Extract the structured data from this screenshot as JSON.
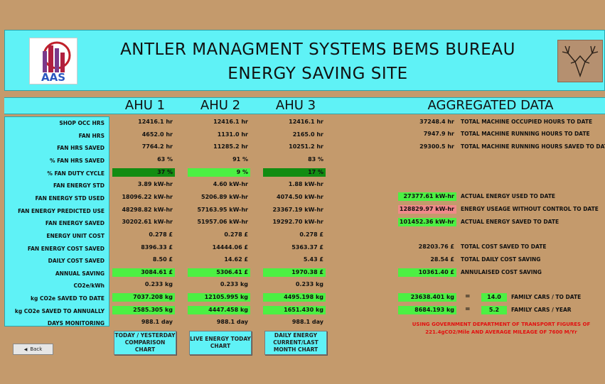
{
  "header": {
    "title_line1": "ANTLER MANAGMENT SYSTEMS BEMS BUREAU",
    "title_line2": "ENERGY SAVING SITE",
    "logo_text": "AAS"
  },
  "columns": {
    "ahu1": "AHU 1",
    "ahu2": "AHU 2",
    "ahu3": "AHU 3",
    "aggregated": "AGGREGATED DATA"
  },
  "rows": [
    {
      "label": "SHOP OCC HRS",
      "ahu1": "12416.1 hr",
      "ahu2": "12416.1 hr",
      "ahu3": "12416.1 hr"
    },
    {
      "label": "FAN HRS",
      "ahu1": "4652.0 hr",
      "ahu2": "1131.0 hr",
      "ahu3": "2165.0 hr"
    },
    {
      "label": "FAN HRS SAVED",
      "ahu1": "7764.2 hr",
      "ahu2": "11285.2 hr",
      "ahu3": "10251.2 hr"
    },
    {
      "label": "% FAN HRS SAVED",
      "ahu1": "63 %",
      "ahu2": "91 %",
      "ahu3": "83 %"
    },
    {
      "label": "% FAN DUTY CYCLE",
      "ahu1": "37 %",
      "ahu2": "9 %",
      "ahu3": "17 %"
    },
    {
      "label": "FAN ENERGY STD",
      "ahu1": "3.89 kW-hr",
      "ahu2": "4.60 kW-hr",
      "ahu3": "1.88 kW-hr"
    },
    {
      "label": "FAN ENERGY STD USED",
      "ahu1": "18096.22 kW-hr",
      "ahu2": "5206.89 kW-hr",
      "ahu3": "4074.50 kW-hr"
    },
    {
      "label": "FAN ENERGY PREDICTED USE",
      "ahu1": "48298.82 kW-hr",
      "ahu2": "57163.95 kW-hr",
      "ahu3": "23367.19 kW-hr"
    },
    {
      "label": "FAN ENERGY SAVED",
      "ahu1": "30202.61 kW-hr",
      "ahu2": "51957.06 kW-hr",
      "ahu3": "19292.70 kW-hr"
    },
    {
      "label": "ENERGY UNIT COST",
      "ahu1": "0.278 £",
      "ahu2": "0.278 £",
      "ahu3": "0.278 £"
    },
    {
      "label": "FAN ENERGY COST SAVED",
      "ahu1": "8396.33 £",
      "ahu2": "14444.06 £",
      "ahu3": "5363.37 £"
    },
    {
      "label": "DAILY COST SAVED",
      "ahu1": "8.50 £",
      "ahu2": "14.62 £",
      "ahu3": "5.43 £"
    },
    {
      "label": "ANNUAL SAVING",
      "ahu1": "3084.61 £",
      "ahu2": "5306.41 £",
      "ahu3": "1970.38 £"
    },
    {
      "label": "CO2e/kWh",
      "ahu1": "0.233 kg",
      "ahu2": "0.233 kg",
      "ahu3": "0.233 kg"
    },
    {
      "label": "kg CO2e SAVED TO DATE",
      "ahu1": "7037.208 kg",
      "ahu2": "12105.995 kg",
      "ahu3": "4495.198 kg"
    },
    {
      "label": "kg CO2e SAVED TO ANNUALLY",
      "ahu1": "2585.305 kg",
      "ahu2": "4447.458 kg",
      "ahu3": "1651.430 kg"
    },
    {
      "label": "DAYS MONITORING",
      "ahu1": "988.1 day",
      "ahu2": "988.1 day",
      "ahu3": "988.1 day"
    }
  ],
  "aggregated": {
    "occ_hours": {
      "value": "37248.4 hr",
      "desc": "TOTAL MACHINE OCCUPIED HOURS TO DATE"
    },
    "run_hours": {
      "value": "7947.9 hr",
      "desc": "TOTAL MACHINE RUNNING HOURS TO DATE"
    },
    "saved_hours": {
      "value": "29300.5 hr",
      "desc": "TOTAL MACHINE RUNNING HOURS SAVED TO DATE"
    },
    "energy_used": {
      "value": "27377.61 kW-hr",
      "desc": "ACTUAL ENERGY USED TO DATE"
    },
    "energy_no_control": {
      "value": "128829.97 kW-hr",
      "desc": "ENERGY USEAGE WITHOUT CONTROL TO DATE"
    },
    "energy_saved": {
      "value": "101452.36 kW-hr",
      "desc": "ACTUAL ENERGY SAVED TO DATE"
    },
    "cost_saved": {
      "value": "28203.76 £",
      "desc": "TOTAL COST SAVED TO DATE"
    },
    "daily_cost": {
      "value": "28.54 £",
      "desc": "TOTAL DAILY COST SAVING"
    },
    "annual_cost": {
      "value": "10361.40 £",
      "desc": "ANNULAISED COST SAVING"
    },
    "co2_to_date": {
      "value": "23638.401 kg",
      "eq": "=",
      "cars": "14.0",
      "desc": "FAMILY CARS / TO DATE"
    },
    "co2_annual": {
      "value": "8684.193 kg",
      "eq": "=",
      "cars": "5.2",
      "desc": "FAMILY CARS / YEAR"
    },
    "note_line1": "USING GOVERNMENT DEPARTMENT OF TRANSPORT FIGURES OF",
    "note_line2": "221.4gCO2/Mile AND AVERAGE MILEAGE OF 7600 M/Yr"
  },
  "buttons": {
    "back": "Back",
    "today_yesterday": "TODAY / YESTERDAY COMPARISON CHART",
    "live_energy": "LIVE ENERGY TODAY CHART",
    "daily_energy": "DAILY ENERGY CURRENT/LAST MONTH CHART"
  },
  "duty_cycle_percent": {
    "ahu1": 37,
    "ahu2": 9,
    "ahu3": 17
  },
  "colors": {
    "panel": "#5ff2f6",
    "background": "#c49a6c",
    "highlight_green": "#4cf043",
    "highlight_dark": "#128c12",
    "highlight_pink": "#f08a8a",
    "note_red": "#e21010"
  }
}
